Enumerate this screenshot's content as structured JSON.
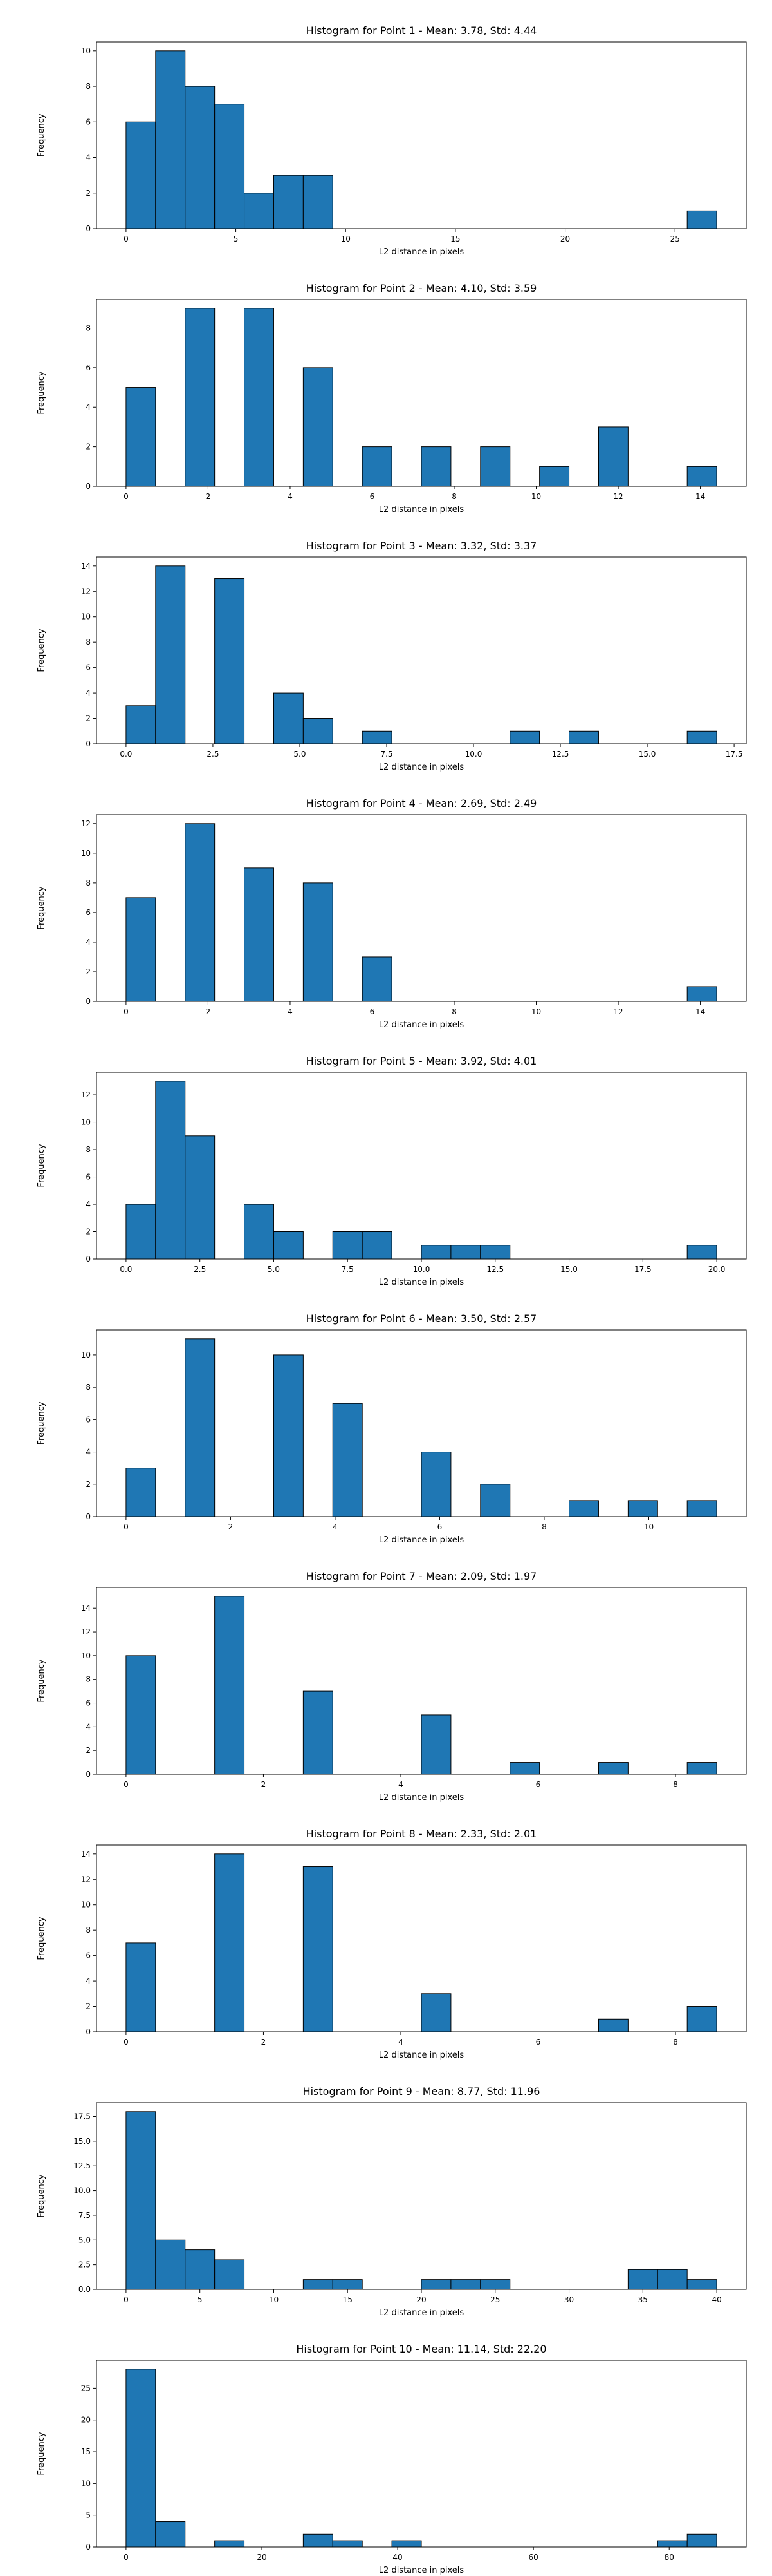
{
  "chart_data": [
    {
      "type": "bar",
      "title": "Histogram for Point 1 - Mean: 3.78, Std: 4.44",
      "xlabel": "L2 distance in pixels",
      "ylabel": "Frequency",
      "bin_edges": [
        0,
        1.345,
        2.69,
        4.035,
        5.38,
        6.725,
        8.07,
        9.415,
        10.76,
        12.105,
        13.45,
        14.795,
        16.14,
        17.485,
        18.83,
        20.175,
        21.52,
        22.865,
        24.21,
        25.555,
        26.9
      ],
      "counts": [
        6,
        10,
        8,
        7,
        2,
        3,
        3,
        0,
        0,
        0,
        0,
        0,
        0,
        0,
        0,
        0,
        0,
        0,
        0,
        1
      ],
      "xlim": [
        -1.345,
        28.245
      ],
      "ylim": [
        0,
        10.5
      ],
      "xticks": [
        {
          "v": 0,
          "label": "0"
        },
        {
          "v": 5,
          "label": "5"
        },
        {
          "v": 10,
          "label": "10"
        },
        {
          "v": 15,
          "label": "15"
        },
        {
          "v": 20,
          "label": "20"
        },
        {
          "v": 25,
          "label": "25"
        }
      ],
      "yticks": [
        {
          "v": 0,
          "label": "0"
        },
        {
          "v": 2,
          "label": "2"
        },
        {
          "v": 4,
          "label": "4"
        },
        {
          "v": 6,
          "label": "6"
        },
        {
          "v": 8,
          "label": "8"
        },
        {
          "v": 10,
          "label": "10"
        }
      ]
    },
    {
      "type": "bar",
      "title": "Histogram for Point 2 - Mean: 4.10, Std: 3.59",
      "xlabel": "L2 distance in pixels",
      "ylabel": "Frequency",
      "bin_edges": [
        0,
        0.72,
        1.44,
        2.16,
        2.88,
        3.6,
        4.32,
        5.04,
        5.76,
        6.48,
        7.2,
        7.92,
        8.64,
        9.36,
        10.08,
        10.8,
        11.52,
        12.24,
        12.96,
        13.68,
        14.4
      ],
      "counts": [
        5,
        0,
        9,
        0,
        9,
        0,
        6,
        0,
        2,
        0,
        2,
        0,
        2,
        0,
        1,
        0,
        3,
        0,
        0,
        1
      ],
      "xlim": [
        -0.72,
        15.12
      ],
      "ylim": [
        0,
        9.45
      ],
      "xticks": [
        {
          "v": 0,
          "label": "0"
        },
        {
          "v": 2,
          "label": "2"
        },
        {
          "v": 4,
          "label": "4"
        },
        {
          "v": 6,
          "label": "6"
        },
        {
          "v": 8,
          "label": "8"
        },
        {
          "v": 10,
          "label": "10"
        },
        {
          "v": 12,
          "label": "12"
        },
        {
          "v": 14,
          "label": "14"
        }
      ],
      "yticks": [
        {
          "v": 0,
          "label": "0"
        },
        {
          "v": 2,
          "label": "2"
        },
        {
          "v": 4,
          "label": "4"
        },
        {
          "v": 6,
          "label": "6"
        },
        {
          "v": 8,
          "label": "8"
        }
      ]
    },
    {
      "type": "bar",
      "title": "Histogram for Point 3 - Mean: 3.32, Std: 3.37",
      "xlabel": "L2 distance in pixels",
      "ylabel": "Frequency",
      "bin_edges": [
        0,
        0.85,
        1.7,
        2.55,
        3.4,
        4.25,
        5.1,
        5.95,
        6.8,
        7.65,
        8.5,
        9.35,
        10.2,
        11.05,
        11.9,
        12.75,
        13.6,
        14.45,
        15.3,
        16.15,
        17.0
      ],
      "counts": [
        3,
        14,
        0,
        13,
        0,
        4,
        2,
        0,
        1,
        0,
        0,
        0,
        0,
        1,
        0,
        1,
        0,
        0,
        0,
        1
      ],
      "xlim": [
        -0.85,
        17.85
      ],
      "ylim": [
        0,
        14.7
      ],
      "xticks": [
        {
          "v": 0,
          "label": "0.0"
        },
        {
          "v": 2.5,
          "label": "2.5"
        },
        {
          "v": 5,
          "label": "5.0"
        },
        {
          "v": 7.5,
          "label": "7.5"
        },
        {
          "v": 10,
          "label": "10.0"
        },
        {
          "v": 12.5,
          "label": "12.5"
        },
        {
          "v": 15,
          "label": "15.0"
        },
        {
          "v": 17.5,
          "label": "17.5"
        }
      ],
      "yticks": [
        {
          "v": 0,
          "label": "0"
        },
        {
          "v": 2,
          "label": "2"
        },
        {
          "v": 4,
          "label": "4"
        },
        {
          "v": 6,
          "label": "6"
        },
        {
          "v": 8,
          "label": "8"
        },
        {
          "v": 10,
          "label": "10"
        },
        {
          "v": 12,
          "label": "12"
        },
        {
          "v": 14,
          "label": "14"
        }
      ]
    },
    {
      "type": "bar",
      "title": "Histogram for Point 4 - Mean: 2.69, Std: 2.49",
      "xlabel": "L2 distance in pixels",
      "ylabel": "Frequency",
      "bin_edges": [
        0,
        0.72,
        1.44,
        2.16,
        2.88,
        3.6,
        4.32,
        5.04,
        5.76,
        6.48,
        7.2,
        7.92,
        8.64,
        9.36,
        10.08,
        10.8,
        11.52,
        12.24,
        12.96,
        13.68,
        14.4
      ],
      "counts": [
        7,
        0,
        12,
        0,
        9,
        0,
        8,
        0,
        3,
        0,
        0,
        0,
        0,
        0,
        0,
        0,
        0,
        0,
        0,
        1
      ],
      "xlim": [
        -0.72,
        15.12
      ],
      "ylim": [
        0,
        12.6
      ],
      "xticks": [
        {
          "v": 0,
          "label": "0"
        },
        {
          "v": 2,
          "label": "2"
        },
        {
          "v": 4,
          "label": "4"
        },
        {
          "v": 6,
          "label": "6"
        },
        {
          "v": 8,
          "label": "8"
        },
        {
          "v": 10,
          "label": "10"
        },
        {
          "v": 12,
          "label": "12"
        },
        {
          "v": 14,
          "label": "14"
        }
      ],
      "yticks": [
        {
          "v": 0,
          "label": "0"
        },
        {
          "v": 2,
          "label": "2"
        },
        {
          "v": 4,
          "label": "4"
        },
        {
          "v": 6,
          "label": "6"
        },
        {
          "v": 8,
          "label": "8"
        },
        {
          "v": 10,
          "label": "10"
        },
        {
          "v": 12,
          "label": "12"
        }
      ]
    },
    {
      "type": "bar",
      "title": "Histogram for Point 5 - Mean: 3.92, Std: 4.01",
      "xlabel": "L2 distance in pixels",
      "ylabel": "Frequency",
      "bin_edges": [
        0,
        1,
        2,
        3,
        4,
        5,
        6,
        7,
        8,
        9,
        10,
        11,
        12,
        13,
        14,
        15,
        16,
        17,
        18,
        19,
        20
      ],
      "counts": [
        4,
        13,
        9,
        0,
        4,
        2,
        0,
        2,
        2,
        0,
        1,
        1,
        1,
        0,
        0,
        0,
        0,
        0,
        0,
        1
      ],
      "xlim": [
        -1,
        21
      ],
      "ylim": [
        0,
        13.65
      ],
      "xticks": [
        {
          "v": 0,
          "label": "0.0"
        },
        {
          "v": 2.5,
          "label": "2.5"
        },
        {
          "v": 5,
          "label": "5.0"
        },
        {
          "v": 7.5,
          "label": "7.5"
        },
        {
          "v": 10,
          "label": "10.0"
        },
        {
          "v": 12.5,
          "label": "12.5"
        },
        {
          "v": 15,
          "label": "15.0"
        },
        {
          "v": 17.5,
          "label": "17.5"
        },
        {
          "v": 20,
          "label": "20.0"
        }
      ],
      "yticks": [
        {
          "v": 0,
          "label": "0"
        },
        {
          "v": 2,
          "label": "2"
        },
        {
          "v": 4,
          "label": "4"
        },
        {
          "v": 6,
          "label": "6"
        },
        {
          "v": 8,
          "label": "8"
        },
        {
          "v": 10,
          "label": "10"
        },
        {
          "v": 12,
          "label": "12"
        }
      ]
    },
    {
      "type": "bar",
      "title": "Histogram for Point 6 - Mean: 3.50, Std: 2.57",
      "xlabel": "L2 distance in pixels",
      "ylabel": "Frequency",
      "bin_edges": [
        0,
        0.565,
        1.13,
        1.695,
        2.26,
        2.825,
        3.39,
        3.955,
        4.52,
        5.085,
        5.65,
        6.215,
        6.78,
        7.345,
        7.91,
        8.475,
        9.04,
        9.605,
        10.17,
        10.735,
        11.3
      ],
      "counts": [
        3,
        0,
        11,
        0,
        0,
        10,
        0,
        7,
        0,
        0,
        4,
        0,
        2,
        0,
        0,
        1,
        0,
        1,
        0,
        1
      ],
      "xlim": [
        -0.565,
        11.865
      ],
      "ylim": [
        0,
        11.55
      ],
      "xticks": [
        {
          "v": 0,
          "label": "0"
        },
        {
          "v": 2,
          "label": "2"
        },
        {
          "v": 4,
          "label": "4"
        },
        {
          "v": 6,
          "label": "6"
        },
        {
          "v": 8,
          "label": "8"
        },
        {
          "v": 10,
          "label": "10"
        }
      ],
      "yticks": [
        {
          "v": 0,
          "label": "0"
        },
        {
          "v": 2,
          "label": "2"
        },
        {
          "v": 4,
          "label": "4"
        },
        {
          "v": 6,
          "label": "6"
        },
        {
          "v": 8,
          "label": "8"
        },
        {
          "v": 10,
          "label": "10"
        }
      ]
    },
    {
      "type": "bar",
      "title": "Histogram for Point 7 - Mean: 2.09, Std: 1.97",
      "xlabel": "L2 distance in pixels",
      "ylabel": "Frequency",
      "bin_edges": [
        0,
        0.43,
        0.86,
        1.29,
        1.72,
        2.15,
        2.58,
        3.01,
        3.44,
        3.87,
        4.3,
        4.73,
        5.16,
        5.59,
        6.02,
        6.45,
        6.88,
        7.31,
        7.74,
        8.17,
        8.6
      ],
      "counts": [
        10,
        0,
        0,
        15,
        0,
        0,
        7,
        0,
        0,
        0,
        5,
        0,
        0,
        1,
        0,
        0,
        1,
        0,
        0,
        1
      ],
      "xlim": [
        -0.43,
        9.03
      ],
      "ylim": [
        0,
        15.75
      ],
      "xticks": [
        {
          "v": 0,
          "label": "0"
        },
        {
          "v": 2,
          "label": "2"
        },
        {
          "v": 4,
          "label": "4"
        },
        {
          "v": 6,
          "label": "6"
        },
        {
          "v": 8,
          "label": "8"
        }
      ],
      "yticks": [
        {
          "v": 0,
          "label": "0"
        },
        {
          "v": 2,
          "label": "2"
        },
        {
          "v": 4,
          "label": "4"
        },
        {
          "v": 6,
          "label": "6"
        },
        {
          "v": 8,
          "label": "8"
        },
        {
          "v": 10,
          "label": "10"
        },
        {
          "v": 12,
          "label": "12"
        },
        {
          "v": 14,
          "label": "14"
        }
      ]
    },
    {
      "type": "bar",
      "title": "Histogram for Point 8 - Mean: 2.33, Std: 2.01",
      "xlabel": "L2 distance in pixels",
      "ylabel": "Frequency",
      "bin_edges": [
        0,
        0.43,
        0.86,
        1.29,
        1.72,
        2.15,
        2.58,
        3.01,
        3.44,
        3.87,
        4.3,
        4.73,
        5.16,
        5.59,
        6.02,
        6.45,
        6.88,
        7.31,
        7.74,
        8.17,
        8.6
      ],
      "counts": [
        7,
        0,
        0,
        14,
        0,
        0,
        13,
        0,
        0,
        0,
        3,
        0,
        0,
        0,
        0,
        0,
        1,
        0,
        0,
        2
      ],
      "xlim": [
        -0.43,
        9.03
      ],
      "ylim": [
        0,
        14.7
      ],
      "xticks": [
        {
          "v": 0,
          "label": "0"
        },
        {
          "v": 2,
          "label": "2"
        },
        {
          "v": 4,
          "label": "4"
        },
        {
          "v": 6,
          "label": "6"
        },
        {
          "v": 8,
          "label": "8"
        }
      ],
      "yticks": [
        {
          "v": 0,
          "label": "0"
        },
        {
          "v": 2,
          "label": "2"
        },
        {
          "v": 4,
          "label": "4"
        },
        {
          "v": 6,
          "label": "6"
        },
        {
          "v": 8,
          "label": "8"
        },
        {
          "v": 10,
          "label": "10"
        },
        {
          "v": 12,
          "label": "12"
        },
        {
          "v": 14,
          "label": "14"
        }
      ]
    },
    {
      "type": "bar",
      "title": "Histogram for Point 9 - Mean: 8.77, Std: 11.96",
      "xlabel": "L2 distance in pixels",
      "ylabel": "Frequency",
      "bin_edges": [
        0,
        2,
        4,
        6,
        8,
        10,
        12,
        14,
        16,
        18,
        20,
        22,
        24,
        26,
        28,
        30,
        32,
        34,
        36,
        38,
        40
      ],
      "counts": [
        18,
        5,
        4,
        3,
        0,
        0,
        1,
        1,
        0,
        0,
        1,
        1,
        1,
        0,
        0,
        0,
        0,
        2,
        2,
        1
      ],
      "xlim": [
        -2,
        42
      ],
      "ylim": [
        0,
        18.9
      ],
      "xticks": [
        {
          "v": 0,
          "label": "0"
        },
        {
          "v": 5,
          "label": "5"
        },
        {
          "v": 10,
          "label": "10"
        },
        {
          "v": 15,
          "label": "15"
        },
        {
          "v": 20,
          "label": "20"
        },
        {
          "v": 25,
          "label": "25"
        },
        {
          "v": 30,
          "label": "30"
        },
        {
          "v": 35,
          "label": "35"
        },
        {
          "v": 40,
          "label": "40"
        }
      ],
      "yticks": [
        {
          "v": 0,
          "label": "0.0"
        },
        {
          "v": 2.5,
          "label": "2.5"
        },
        {
          "v": 5,
          "label": "5.0"
        },
        {
          "v": 7.5,
          "label": "7.5"
        },
        {
          "v": 10,
          "label": "10.0"
        },
        {
          "v": 12.5,
          "label": "12.5"
        },
        {
          "v": 15,
          "label": "15.0"
        },
        {
          "v": 17.5,
          "label": "17.5"
        }
      ]
    },
    {
      "type": "bar",
      "title": "Histogram for Point 10 - Mean: 11.14, Std: 22.20",
      "xlabel": "L2 distance in pixels",
      "ylabel": "Frequency",
      "bin_edges": [
        0,
        4.35,
        8.7,
        13.05,
        17.4,
        21.75,
        26.1,
        30.45,
        34.8,
        39.15,
        43.5,
        47.85,
        52.2,
        56.55,
        60.9,
        65.25,
        69.6,
        73.95,
        78.3,
        82.65,
        87.0
      ],
      "counts": [
        28,
        4,
        0,
        1,
        0,
        0,
        2,
        1,
        0,
        1,
        0,
        0,
        0,
        0,
        0,
        0,
        0,
        0,
        1,
        2
      ],
      "xlim": [
        -4.35,
        91.35
      ],
      "ylim": [
        0,
        29.4
      ],
      "xticks": [
        {
          "v": 0,
          "label": "0"
        },
        {
          "v": 20,
          "label": "20"
        },
        {
          "v": 40,
          "label": "40"
        },
        {
          "v": 60,
          "label": "60"
        },
        {
          "v": 80,
          "label": "80"
        }
      ],
      "yticks": [
        {
          "v": 0,
          "label": "0"
        },
        {
          "v": 5,
          "label": "5"
        },
        {
          "v": 10,
          "label": "10"
        },
        {
          "v": 15,
          "label": "15"
        },
        {
          "v": 20,
          "label": "20"
        },
        {
          "v": 25,
          "label": "25"
        }
      ]
    }
  ]
}
